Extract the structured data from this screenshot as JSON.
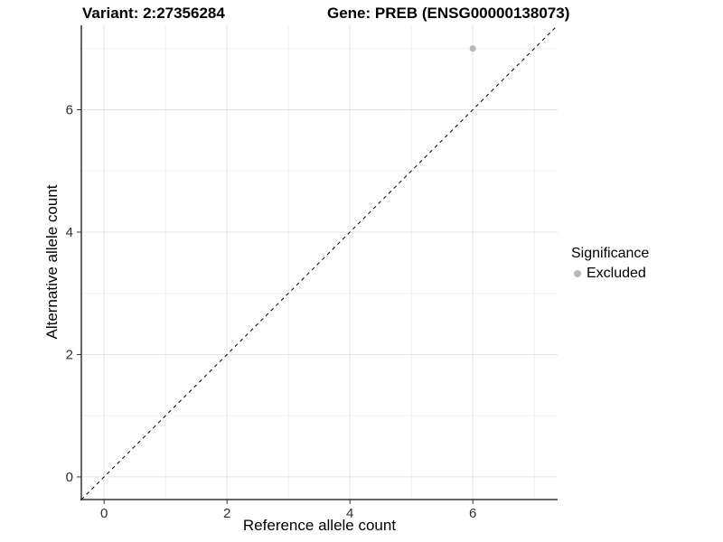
{
  "chart_data": {
    "type": "scatter",
    "title_left": "Variant: 2:27356284",
    "title_right": "Gene: PREB (ENSG00000138073)",
    "xlabel": "Reference allele count",
    "ylabel": "Alternative allele count",
    "xlim": [
      -0.37,
      7.38
    ],
    "ylim": [
      -0.37,
      7.38
    ],
    "x_ticks": [
      0,
      2,
      4,
      6
    ],
    "y_ticks": [
      0,
      2,
      4,
      6
    ],
    "x_minor_ticks": [
      1,
      3,
      5,
      7
    ],
    "y_minor_ticks": [
      1,
      3,
      5,
      7
    ],
    "grid": "major+minor",
    "points": [
      {
        "x": 6,
        "y": 7,
        "significance": "Excluded",
        "color": "#b9b9b9"
      }
    ],
    "identity_line": {
      "equation": "y = x",
      "style": "dashed",
      "color": "#000000"
    },
    "legend": {
      "title": "Significance",
      "position": "right",
      "entries": [
        {
          "label": "Excluded",
          "marker": "circle",
          "color": "#b9b9b9"
        }
      ]
    },
    "colors": {
      "axis_line": "#333333",
      "tick_label": "#303030",
      "grid_major": "#e5e5e5",
      "grid_minor": "#f2f2f2",
      "background": "#ffffff"
    }
  }
}
